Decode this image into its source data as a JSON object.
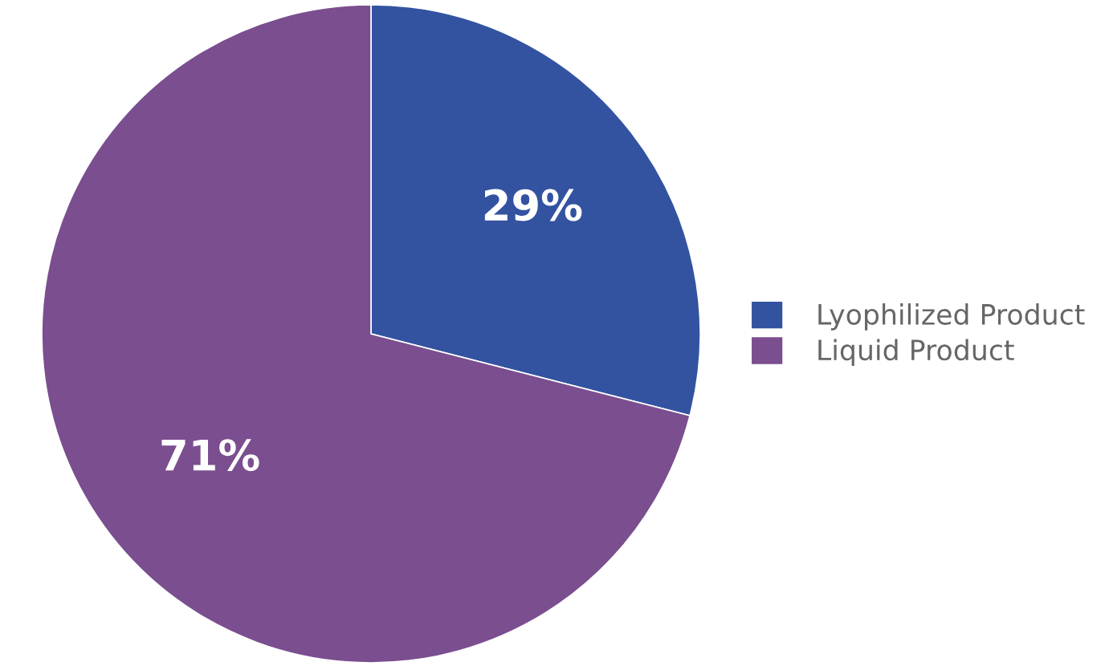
{
  "chart_data": {
    "type": "pie",
    "categories": [
      "Lyophilized Product",
      "Liquid Product"
    ],
    "values": [
      29,
      71
    ],
    "colors": [
      "#3353a1",
      "#7a4e8f"
    ],
    "value_labels": [
      "29%",
      "71%"
    ],
    "legend": "right"
  }
}
